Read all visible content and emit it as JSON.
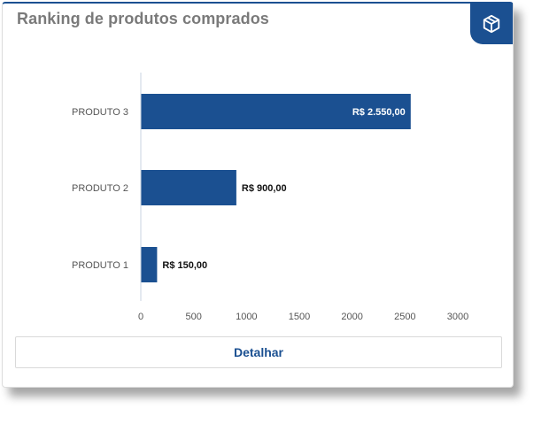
{
  "card": {
    "title": "Ranking de produtos comprados",
    "icon": "box-icon",
    "accent_color": "#1b5091"
  },
  "chart_data": {
    "type": "bar",
    "orientation": "horizontal",
    "categories": [
      "PRODUTO 3",
      "PRODUTO 2",
      "PRODUTO 1"
    ],
    "values": [
      2550,
      900,
      150
    ],
    "data_labels": [
      "R$ 2.550,00",
      "R$ 900,00",
      "R$ 150,00"
    ],
    "xlim": [
      0,
      3000
    ],
    "x_ticks": [
      "0",
      "500",
      "1000",
      "1500",
      "2000",
      "2500",
      "3000"
    ],
    "bar_color": "#1b5091",
    "grid": false,
    "legend": "none"
  },
  "actions": {
    "detail_label": "Detalhar"
  }
}
